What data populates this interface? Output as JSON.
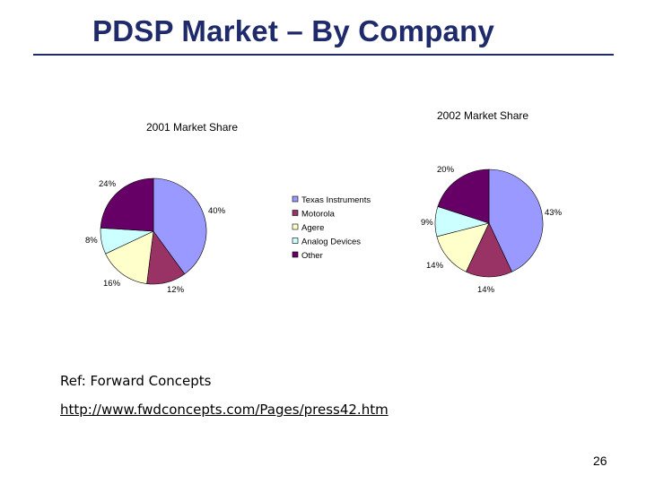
{
  "slide": {
    "title": "PDSP Market – By Company",
    "ref_label": "Ref: Forward Concepts",
    "ref_url": "http://www.fwdconcepts.com/Pages/press42.htm",
    "page_number": "26"
  },
  "colors": {
    "Texas Instruments": "#9999ff",
    "Motorola": "#993366",
    "Agere": "#ffffcc",
    "Analog Devices": "#ccffff",
    "Other": "#660066"
  },
  "chart_data": [
    {
      "type": "pie",
      "title": "2001 Market Share",
      "categories": [
        "Texas Instruments",
        "Motorola",
        "Agere",
        "Analog Devices",
        "Other"
      ],
      "values": [
        40,
        12,
        16,
        8,
        24
      ],
      "labels": [
        "40%",
        "12%",
        "16%",
        "8%",
        "24%"
      ],
      "legend": "right"
    },
    {
      "type": "pie",
      "title": "2002 Market Share",
      "categories": [
        "Texas Instruments",
        "Motorola",
        "Agere",
        "Analog Devices",
        "Other"
      ],
      "values": [
        43,
        14,
        14,
        9,
        20
      ],
      "labels": [
        "43%",
        "14%",
        "14%",
        "9%",
        "20%"
      ]
    }
  ]
}
